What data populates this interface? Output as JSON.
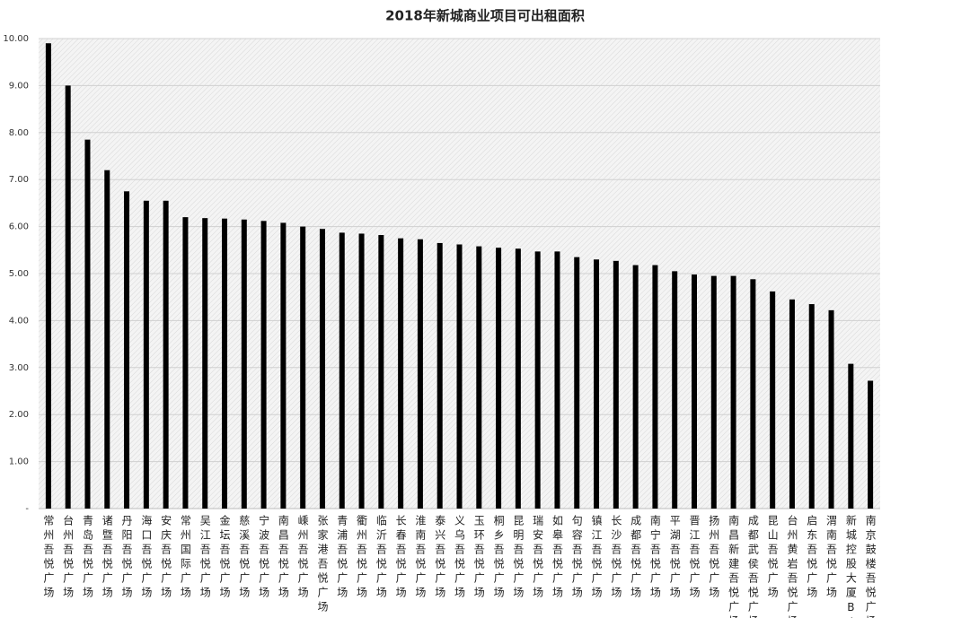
{
  "chart_data": {
    "type": "bar",
    "title": "2018年新城商业项目可出租面积",
    "categories": [
      "常州吾悦广场",
      "台州吾悦广场",
      "青岛吾悦广场",
      "诸暨吾悦广场",
      "丹阳吾悦广场",
      "海口吾悦广场",
      "安庆吾悦广场",
      "常州国际广场",
      "吴江吾悦广场",
      "金坛吾悦广场",
      "慈溪吾悦广场",
      "宁波吾悦广场",
      "南昌吾悦广场",
      "嵊州吾悦广场",
      "张家港吾悦广场",
      "青浦吾悦广场",
      "衢州吾悦广场",
      "临沂吾悦广场",
      "长春吾悦广场",
      "淮南吾悦广场",
      "泰兴吾悦广场",
      "义乌吾悦广场",
      "玉环吾悦广场",
      "桐乡吾悦广场",
      "昆明吾悦广场",
      "瑞安吾悦广场",
      "如皋吾悦广场",
      "句容吾悦广场",
      "镇江吾悦广场",
      "长沙吾悦广场",
      "成都吾悦广场",
      "南宁吾悦广场",
      "平湖吾悦广场",
      "晋江吾悦广场",
      "扬州吾悦广场",
      "南昌新建吾悦广场",
      "成都武侯吾悦广场",
      "昆山吾悦广场",
      "台州黄岩吾悦广场",
      "启东吾悦广场",
      "渭南吾悦广场",
      "新城控股大厦B座",
      "南京鼓楼吾悦广场"
    ],
    "values": [
      9.9,
      9.0,
      7.85,
      7.2,
      6.75,
      6.55,
      6.55,
      6.2,
      6.18,
      6.17,
      6.15,
      6.12,
      6.08,
      6.0,
      5.95,
      5.87,
      5.85,
      5.82,
      5.75,
      5.73,
      5.65,
      5.62,
      5.58,
      5.55,
      5.53,
      5.47,
      5.47,
      5.35,
      5.3,
      5.27,
      5.18,
      5.18,
      5.05,
      4.98,
      4.95,
      4.95,
      4.88,
      4.62,
      4.45,
      4.35,
      4.22,
      3.08,
      2.72
    ],
    "color": "#000000",
    "ylim": [
      0,
      10
    ],
    "yticks": [
      {
        "value": 0,
        "label": "-"
      },
      {
        "value": 1,
        "label": "1.00"
      },
      {
        "value": 2,
        "label": "2.00"
      },
      {
        "value": 3,
        "label": "3.00"
      },
      {
        "value": 4,
        "label": "4.00"
      },
      {
        "value": 5,
        "label": "5.00"
      },
      {
        "value": 6,
        "label": "6.00"
      },
      {
        "value": 7,
        "label": "7.00"
      },
      {
        "value": 8,
        "label": "8.00"
      },
      {
        "value": 9,
        "label": "9.00"
      },
      {
        "value": 10,
        "label": "10.00"
      }
    ],
    "grid": true
  }
}
